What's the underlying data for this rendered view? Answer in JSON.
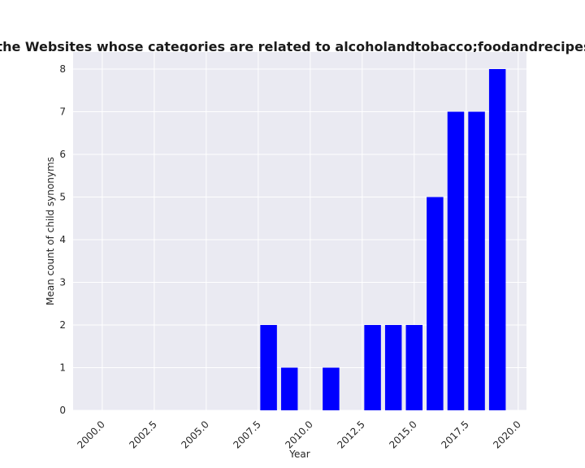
{
  "chart_data": {
    "type": "bar",
    "title": "Distribution of the Privacy Policies over Years for the Websites whose categories are related to alcoholandtobacco;foodandrecipes Mean count of child synonyms in privacy policies",
    "xlabel": "Year",
    "ylabel": "Mean count of child synonyms",
    "xlim": [
      1998.6,
      2020.4
    ],
    "ylim": [
      0,
      8.4
    ],
    "xticks": [
      "2000.0",
      "2002.5",
      "2005.0",
      "2007.5",
      "2010.0",
      "2012.5",
      "2015.0",
      "2017.5",
      "2020.0"
    ],
    "yticks": [
      "0",
      "1",
      "2",
      "3",
      "4",
      "5",
      "6",
      "7",
      "8"
    ],
    "x": [
      2008,
      2009,
      2011,
      2013,
      2014,
      2015,
      2016,
      2017,
      2018,
      2019
    ],
    "values": [
      2,
      1,
      1,
      2,
      2,
      2,
      5,
      7,
      7,
      8
    ],
    "bar_color": "#0000ff",
    "background": "#eaeaf2",
    "grid": true
  }
}
